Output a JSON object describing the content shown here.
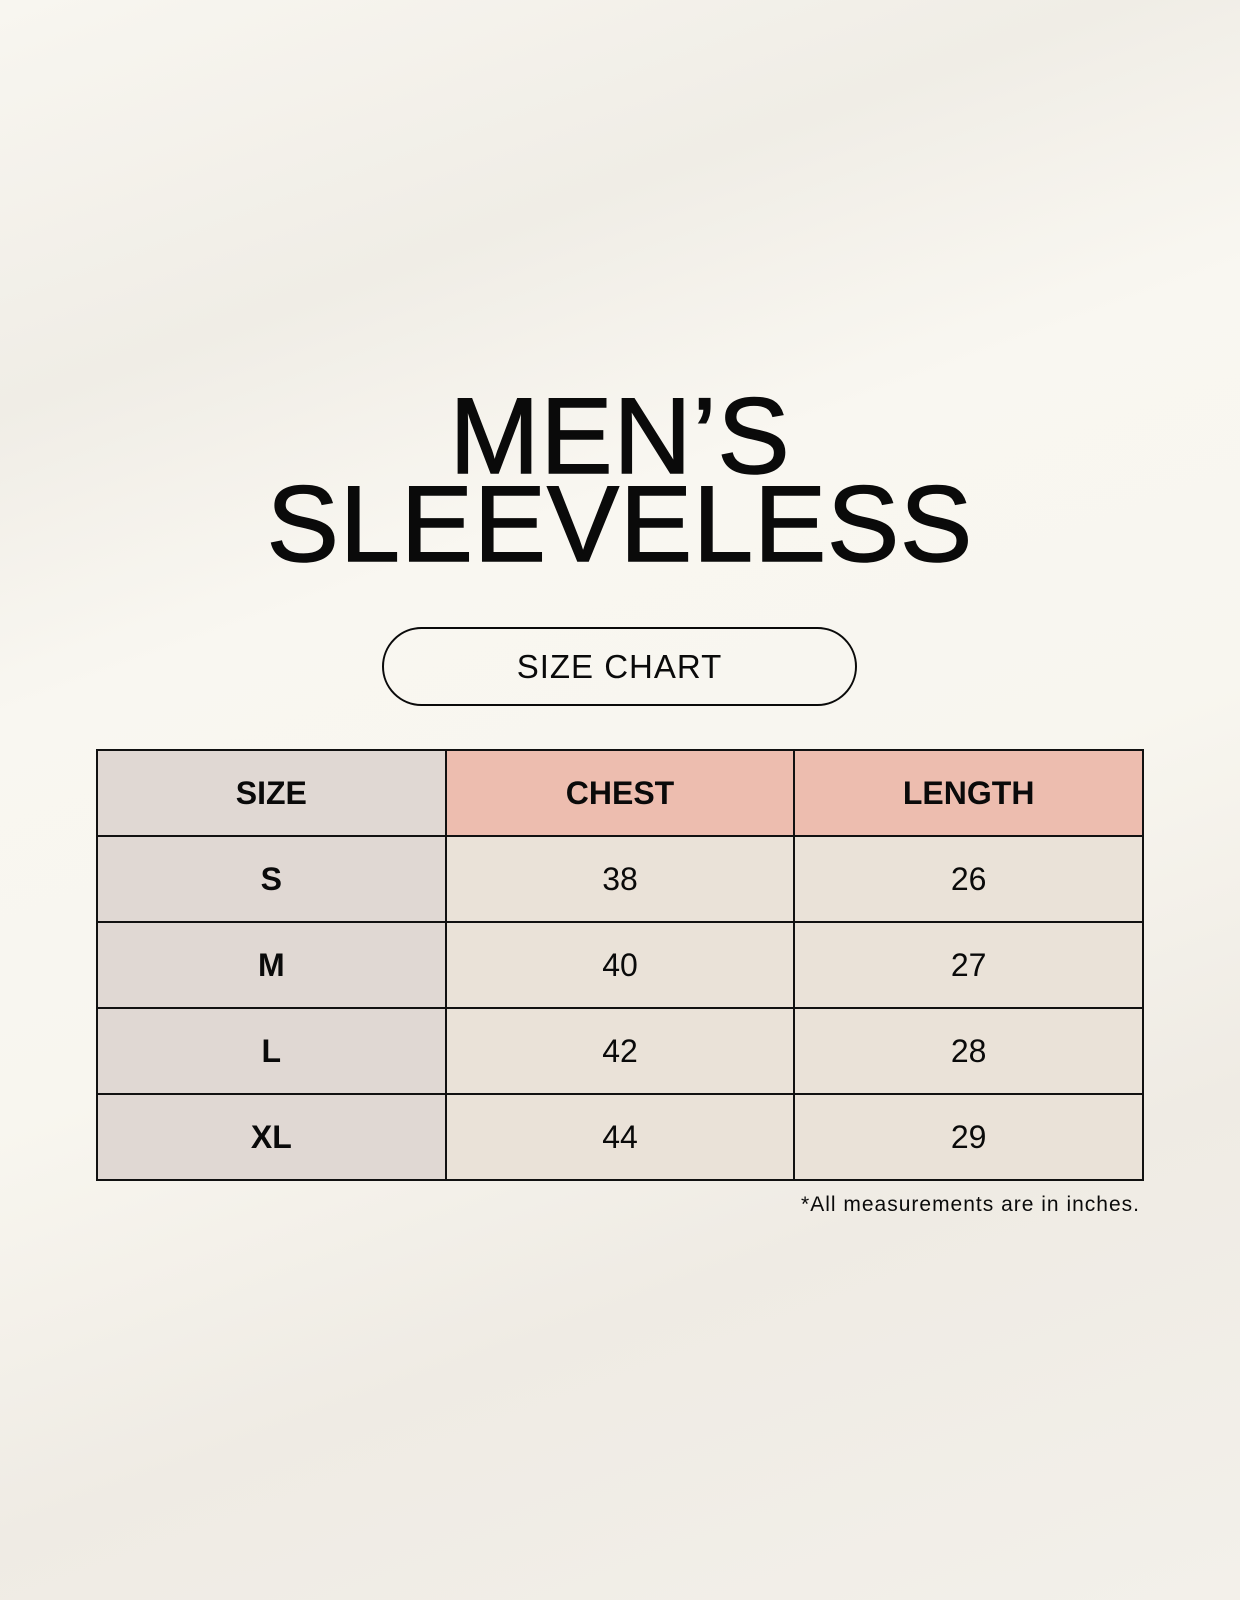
{
  "title": {
    "line1": "MEN’S",
    "line2": "SLEEVELESS"
  },
  "subtitle": "SIZE CHART",
  "table": {
    "headers": [
      "SIZE",
      "CHEST",
      "LENGTH"
    ],
    "rows": [
      [
        "S",
        "38",
        "26"
      ],
      [
        "M",
        "40",
        "27"
      ],
      [
        "L",
        "42",
        "28"
      ],
      [
        "XL",
        "44",
        "29"
      ]
    ]
  },
  "footnote": "*All measurements are in inches.",
  "colors": {
    "size_column": "#e0d8d3",
    "header_accent": "#edbdaf",
    "value_cells": "#eae2d8"
  }
}
